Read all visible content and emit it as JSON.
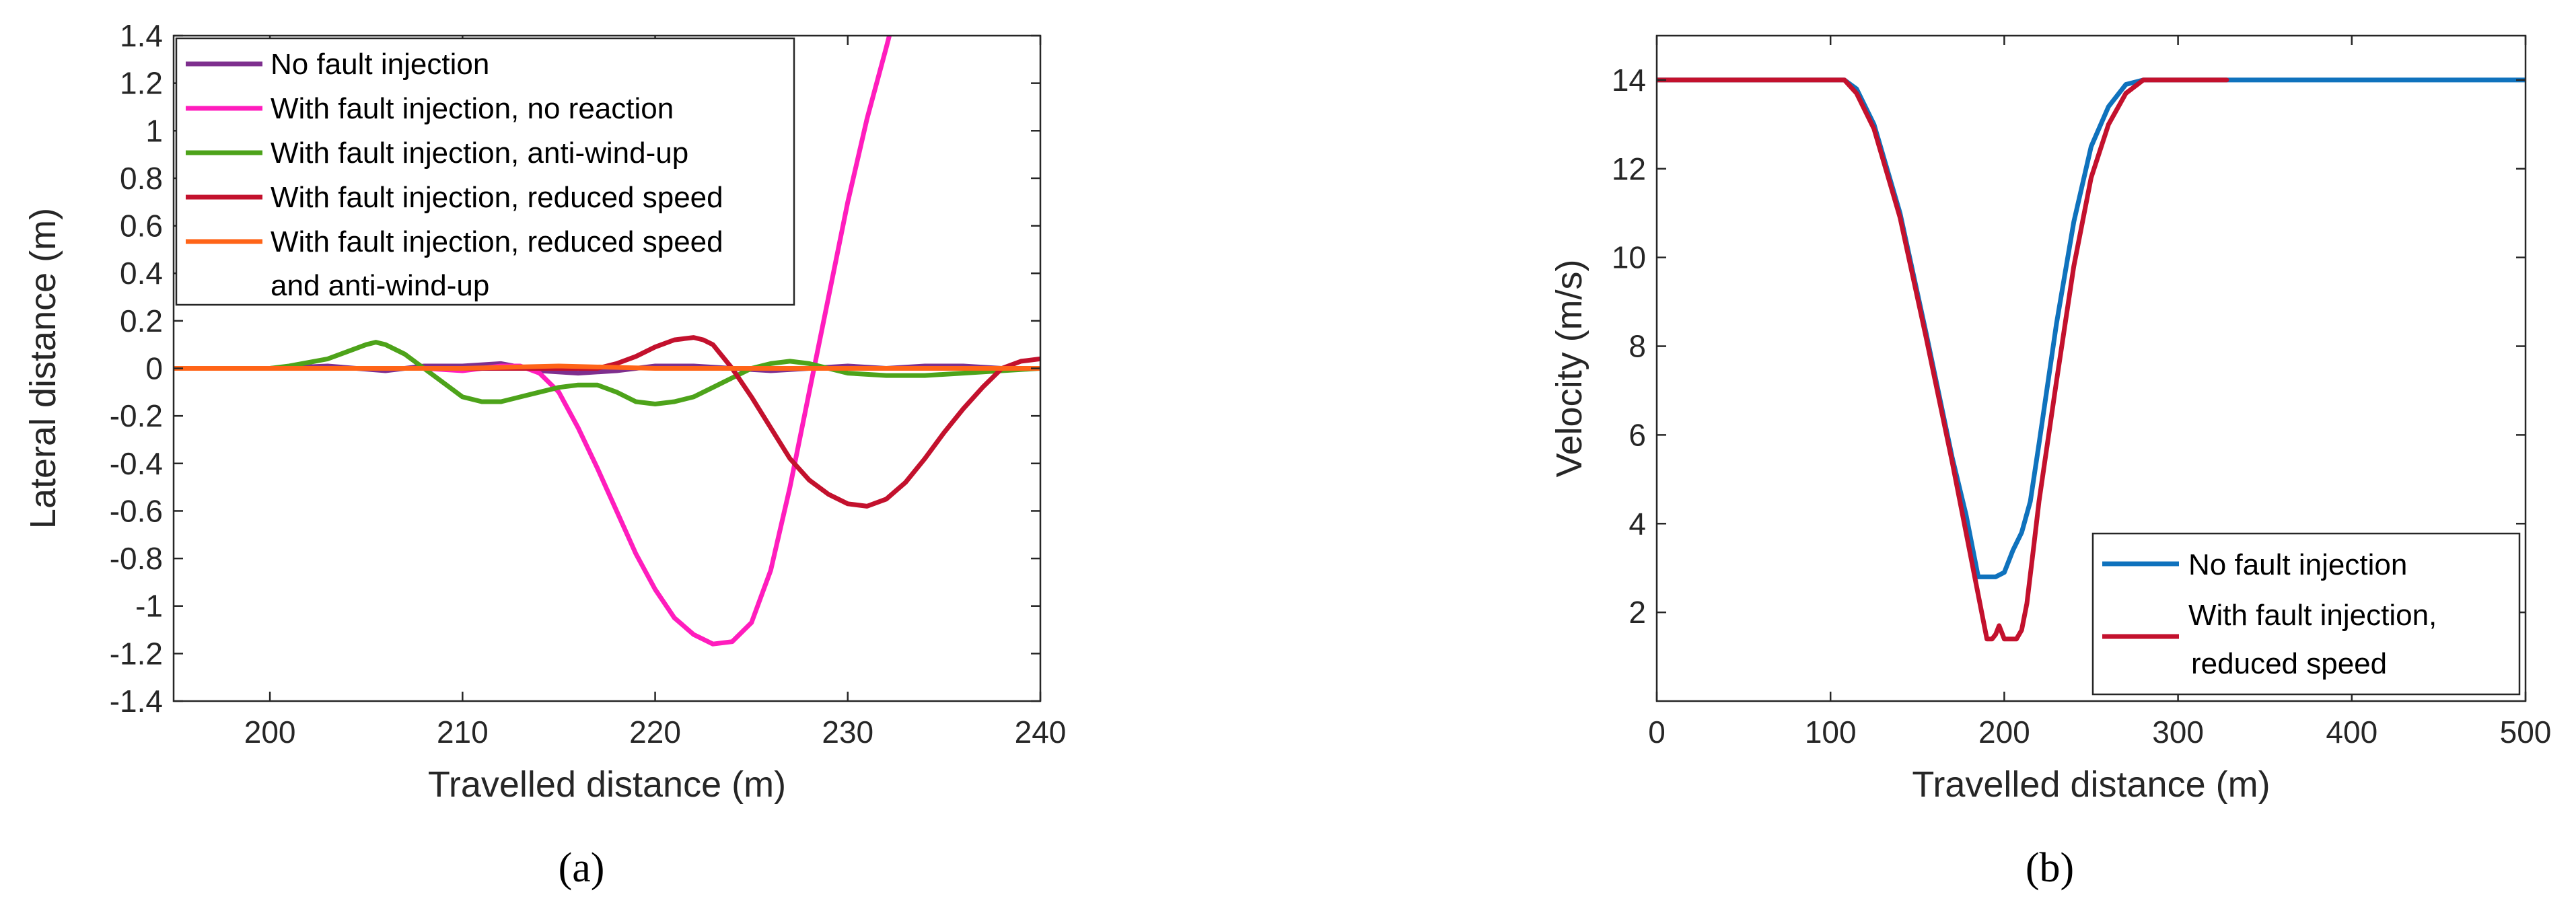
{
  "chart_data": [
    {
      "type": "line",
      "caption": "(a)",
      "xlabel": "Travelled distance (m)",
      "ylabel": "Lateral distance (m)",
      "xlim": [
        195,
        240
      ],
      "ylim": [
        -1.4,
        1.4
      ],
      "xticks": [
        200,
        210,
        220,
        230,
        240
      ],
      "yticks": [
        -1.4,
        -1.2,
        -1,
        -0.8,
        -0.6,
        -0.4,
        -0.2,
        0,
        0.2,
        0.4,
        0.6,
        0.8,
        1,
        1.2,
        1.4
      ],
      "legend_position": "top-left",
      "series": [
        {
          "name": "No fault injection",
          "color": "#7e2f8e",
          "x": [
            195,
            200,
            203,
            206,
            208,
            210,
            212,
            214,
            216,
            218,
            220,
            222,
            224,
            226,
            228,
            230,
            232,
            234,
            236,
            238,
            240
          ],
          "y": [
            0,
            0,
            0.01,
            -0.01,
            0.01,
            0.01,
            0.02,
            -0.01,
            -0.02,
            -0.01,
            0.01,
            0.01,
            0,
            -0.01,
            0,
            0.01,
            0,
            0.01,
            0.01,
            0,
            0
          ]
        },
        {
          "name": "With fault injection, no reaction",
          "color": "#ff1dbd",
          "x": [
            195,
            200,
            205,
            208,
            210,
            212,
            213,
            214,
            215,
            216,
            217,
            218,
            219,
            220,
            221,
            222,
            223,
            224,
            225,
            226,
            227,
            228,
            229,
            230,
            231,
            232,
            232.8
          ],
          "y": [
            0,
            0,
            0,
            0,
            -0.01,
            0.01,
            0.01,
            -0.02,
            -0.1,
            -0.25,
            -0.42,
            -0.6,
            -0.78,
            -0.93,
            -1.05,
            -1.12,
            -1.16,
            -1.15,
            -1.07,
            -0.85,
            -0.5,
            -0.1,
            0.3,
            0.7,
            1.05,
            1.35,
            1.6
          ]
        },
        {
          "name": "With fault injection, anti-wind-up",
          "color": "#4da31a",
          "x": [
            195,
            200,
            201,
            203,
            204,
            205,
            205.5,
            206,
            207,
            208,
            209,
            210,
            211,
            212,
            213,
            214,
            215,
            216,
            217,
            218,
            219,
            220,
            221,
            222,
            223,
            224,
            225,
            226,
            227,
            228,
            229,
            230,
            232,
            234,
            236,
            238,
            240
          ],
          "y": [
            0,
            0,
            0.01,
            0.04,
            0.07,
            0.1,
            0.11,
            0.1,
            0.06,
            0,
            -0.06,
            -0.12,
            -0.14,
            -0.14,
            -0.12,
            -0.1,
            -0.08,
            -0.07,
            -0.07,
            -0.1,
            -0.14,
            -0.15,
            -0.14,
            -0.12,
            -0.08,
            -0.04,
            0,
            0.02,
            0.03,
            0.02,
            0,
            -0.02,
            -0.03,
            -0.03,
            -0.02,
            -0.01,
            0
          ]
        },
        {
          "name": "With fault injection, reduced speed",
          "color": "#c3112d",
          "x": [
            195,
            200,
            205,
            210,
            212,
            214,
            216,
            217,
            218,
            219,
            220,
            221,
            222,
            222.5,
            223,
            224,
            225,
            226,
            227,
            228,
            229,
            230,
            231,
            232,
            233,
            234,
            235,
            236,
            237,
            238,
            239,
            240
          ],
          "y": [
            0,
            0,
            0,
            0,
            0,
            0,
            0,
            0,
            0.02,
            0.05,
            0.09,
            0.12,
            0.13,
            0.12,
            0.1,
            0,
            -0.12,
            -0.25,
            -0.38,
            -0.47,
            -0.53,
            -0.57,
            -0.58,
            -0.55,
            -0.48,
            -0.38,
            -0.27,
            -0.17,
            -0.08,
            0,
            0.03,
            0.04
          ]
        },
        {
          "name": "With fault injection, reduced speed and anti-wind-up",
          "color": "#ff6418",
          "x": [
            195,
            200,
            205,
            210,
            215,
            220,
            225,
            230,
            235,
            240
          ],
          "y": [
            0,
            0,
            0,
            0,
            0.01,
            0,
            0,
            0,
            0,
            0
          ]
        }
      ]
    },
    {
      "type": "line",
      "caption": "(b)",
      "xlabel": "Travelled distance (m)",
      "ylabel": "Velocity (m/s)",
      "xlim": [
        0,
        500
      ],
      "ylim": [
        0,
        15
      ],
      "xticks": [
        0,
        100,
        200,
        300,
        400,
        500
      ],
      "yticks": [
        2,
        4,
        6,
        8,
        10,
        12,
        14
      ],
      "legend_position": "bottom-right",
      "series": [
        {
          "name": "No fault injection",
          "color": "#0f72bd",
          "x": [
            0,
            50,
            100,
            108,
            115,
            125,
            140,
            155,
            170,
            178,
            180,
            185,
            190,
            195,
            200,
            205,
            210,
            215,
            220,
            230,
            240,
            250,
            260,
            270,
            280,
            300,
            350,
            400,
            450,
            500
          ],
          "y": [
            14,
            14,
            14,
            14,
            13.8,
            13,
            11,
            8.3,
            5.5,
            4.2,
            3.8,
            2.8,
            2.8,
            2.8,
            2.9,
            3.4,
            3.8,
            4.5,
            5.8,
            8.5,
            10.8,
            12.5,
            13.4,
            13.9,
            14,
            14,
            14,
            14,
            14,
            14
          ]
        },
        {
          "name": "With fault injection, reduced speed",
          "color": "#c3112d",
          "x": [
            0,
            50,
            100,
            108,
            115,
            125,
            140,
            155,
            170,
            178,
            183,
            187,
            190,
            193,
            195,
            197,
            200,
            203,
            207,
            210,
            213,
            217,
            220,
            230,
            240,
            250,
            260,
            270,
            280,
            290,
            300,
            310,
            320,
            328
          ],
          "y": [
            14,
            14,
            14,
            14,
            13.7,
            12.9,
            10.9,
            8.2,
            5.4,
            3.8,
            2.8,
            2,
            1.4,
            1.4,
            1.5,
            1.7,
            1.4,
            1.4,
            1.4,
            1.6,
            2.2,
            3.5,
            4.5,
            7.2,
            9.8,
            11.8,
            13,
            13.7,
            14,
            14,
            14,
            14,
            14,
            14
          ]
        }
      ]
    }
  ]
}
